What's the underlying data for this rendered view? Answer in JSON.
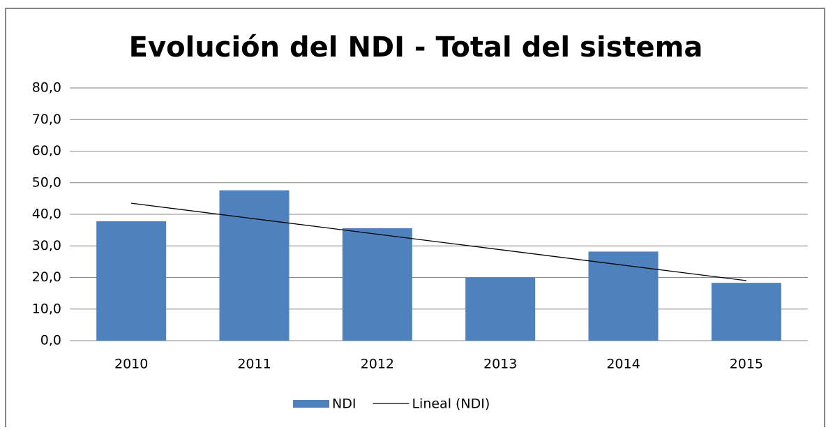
{
  "chart_data": {
    "type": "bar",
    "title": "Evolución del NDI - Total del sistema",
    "categories": [
      "2010",
      "2011",
      "2012",
      "2013",
      "2014",
      "2015"
    ],
    "series": [
      {
        "name": "NDI",
        "type": "bar",
        "color": "#4f81bd",
        "values": [
          37.8,
          47.6,
          35.6,
          20.0,
          28.2,
          18.3
        ]
      },
      {
        "name": "Lineal (NDI)",
        "type": "line",
        "color": "#000000",
        "values": [
          43.5,
          38.6,
          33.7,
          28.8,
          23.9,
          19.0
        ]
      }
    ],
    "ylim": [
      0,
      80
    ],
    "yticks": [
      {
        "value": 0,
        "label": "0,0"
      },
      {
        "value": 10,
        "label": "10,0"
      },
      {
        "value": 20,
        "label": "20,0"
      },
      {
        "value": 30,
        "label": "30,0"
      },
      {
        "value": 40,
        "label": "40,0"
      },
      {
        "value": 50,
        "label": "50,0"
      },
      {
        "value": 60,
        "label": "60,0"
      },
      {
        "value": 70,
        "label": "70,0"
      },
      {
        "value": 80,
        "label": "80,0"
      }
    ],
    "grid": true,
    "legend": "bottom"
  }
}
